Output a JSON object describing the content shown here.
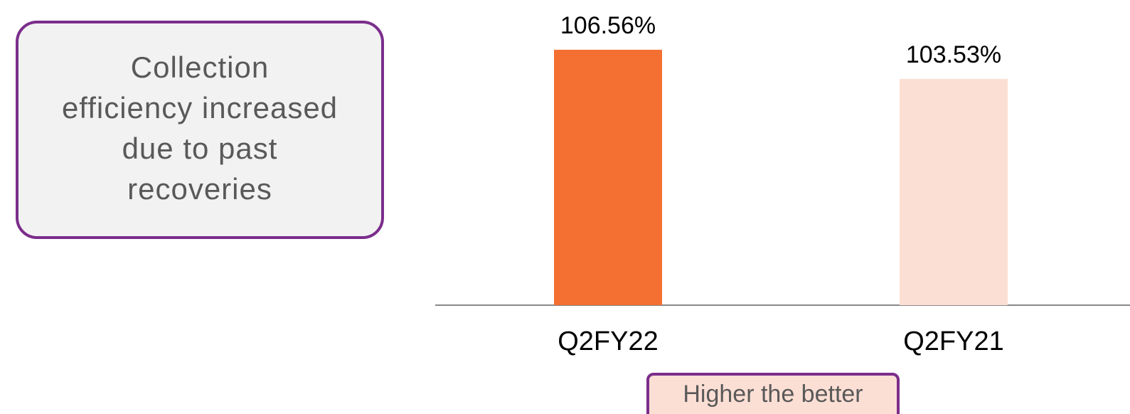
{
  "chart_data": {
    "type": "bar",
    "categories": [
      "Q2FY22",
      "Q2FY21"
    ],
    "values": [
      106.56,
      103.53
    ],
    "value_labels": [
      "106.56%",
      "103.53%"
    ],
    "colors": [
      "#f37032",
      "#fcdfd4"
    ],
    "ylim": [
      80,
      107
    ],
    "callout": [
      "Collection",
      "efficiency increased",
      "due to past",
      "recoveries"
    ],
    "annotation": "Higher the better"
  }
}
